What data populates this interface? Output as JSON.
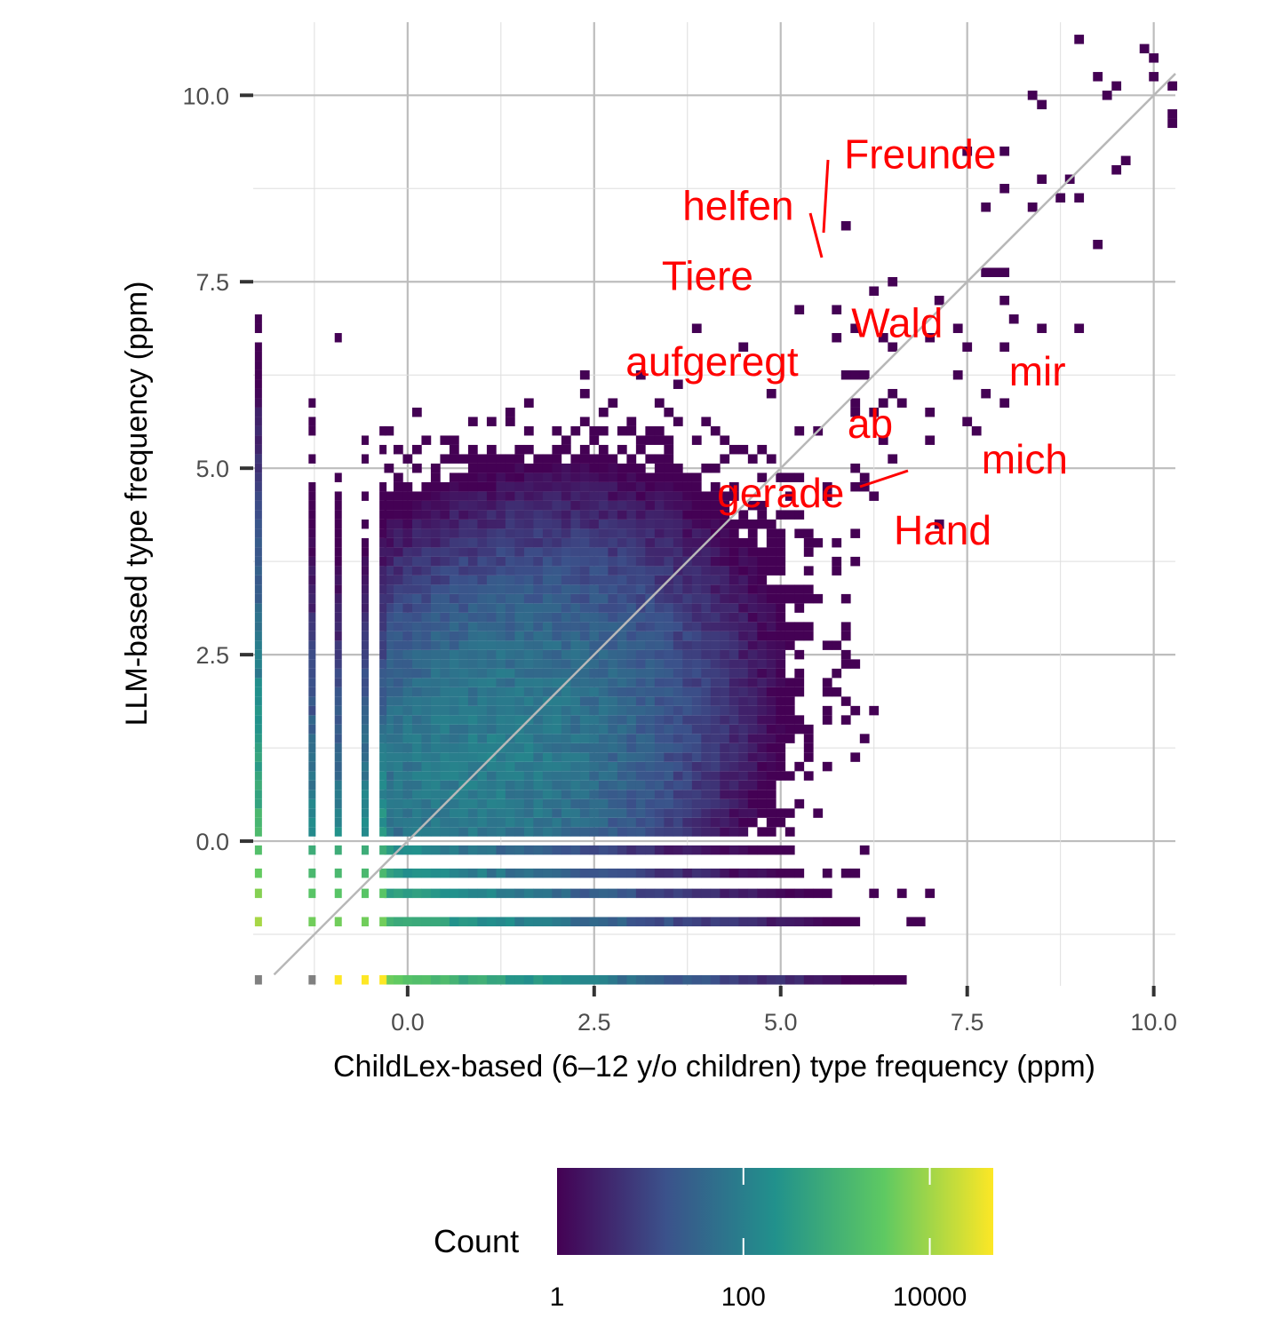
{
  "chart_data": {
    "type": "heatmap",
    "subtype": "2d-histogram (log10 frequency)",
    "xlabel": "ChildLex-based (6‒12 y/o children) type frequency (ppm)",
    "ylabel": "LLM-based type frequency (ppm)",
    "xlim": [
      -2.07,
      10.29
    ],
    "ylim": [
      -1.94,
      10.98
    ],
    "xticks": [
      0,
      2.5,
      5,
      7.5,
      10
    ],
    "xtick_labels": [
      "0.0",
      "2.5",
      "5.0",
      "7.5",
      "10.0"
    ],
    "yticks": [
      0,
      2.5,
      5,
      7.5,
      10
    ],
    "ytick_labels": [
      "0.0",
      "2.5",
      "5.0",
      "7.5",
      "10.0"
    ],
    "bin_width": 0.125,
    "reference_line": "y = x",
    "grid": true,
    "density_model": {
      "peak_log10_count": 2.0,
      "peak_center": [
        1.0,
        1.0
      ],
      "stripe_columns_x": [
        -2.0,
        -1.28,
        -0.93,
        -0.57,
        -0.33
      ],
      "stripe_rows_y": [
        -0.12,
        -0.43,
        -0.7,
        -1.08,
        -1.86
      ]
    },
    "annotations": [
      {
        "text": "Freunde",
        "x": 6.87,
        "y": 9.21
      },
      {
        "text": "helfen",
        "x": 4.43,
        "y": 8.52
      },
      {
        "text": "Tiere",
        "x": 4.02,
        "y": 7.58
      },
      {
        "text": "aufgeregt",
        "x": 4.08,
        "y": 6.43
      },
      {
        "text": "Wald",
        "x": 6.56,
        "y": 6.95
      },
      {
        "text": "mir",
        "x": 8.44,
        "y": 6.3
      },
      {
        "text": "ab",
        "x": 6.2,
        "y": 5.6
      },
      {
        "text": "mich",
        "x": 8.27,
        "y": 5.12
      },
      {
        "text": "gerade",
        "x": 5.0,
        "y": 4.67
      },
      {
        "text": "Hand",
        "x": 7.17,
        "y": 4.17
      }
    ],
    "legend": {
      "title": "Count",
      "position": "bottom",
      "scale": "log10",
      "range": [
        1,
        48000
      ],
      "ticks": [
        1,
        100,
        10000
      ],
      "tick_labels": [
        "1",
        "100",
        "10000"
      ],
      "palette": [
        "#440154",
        "#3b528b",
        "#21918c",
        "#5ec962",
        "#fde725"
      ]
    },
    "colors": {
      "annotation": "#ff0000",
      "grid": "#bdbdbd",
      "na": "#808080"
    }
  }
}
